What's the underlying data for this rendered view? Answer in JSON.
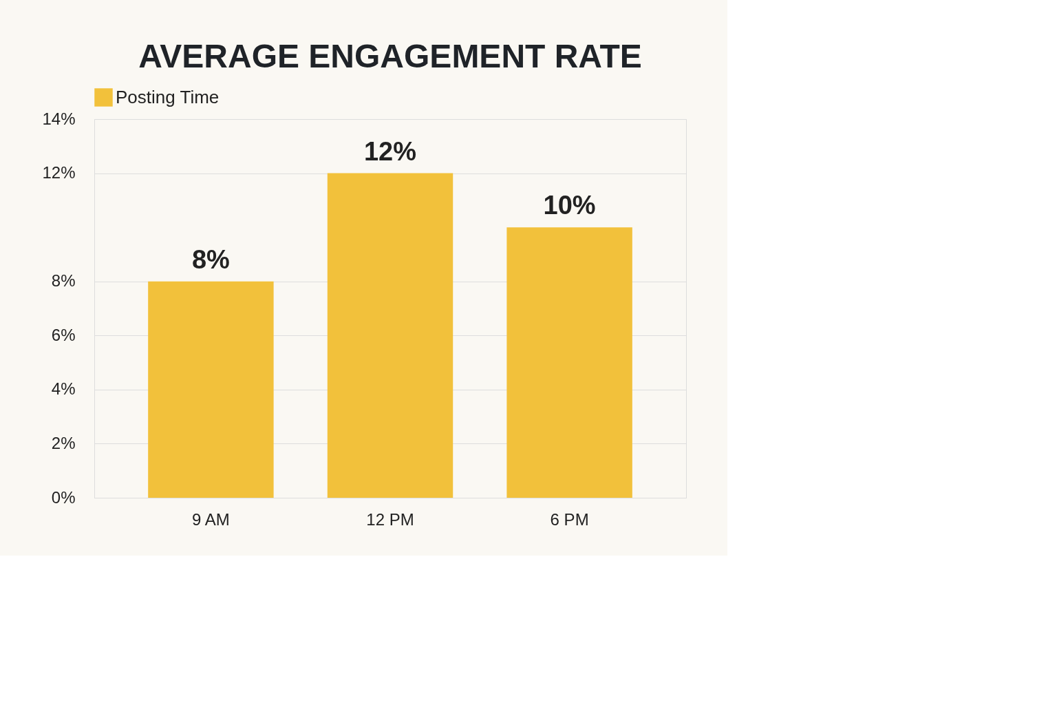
{
  "chart_data": {
    "type": "bar",
    "title": "AVERAGE ENGAGEMENT RATE",
    "categories": [
      "9 AM",
      "12 PM",
      "6 PM"
    ],
    "series": [
      {
        "name": "Posting Time",
        "color": "#f2c13b",
        "values": [
          8,
          12,
          10
        ],
        "value_labels": [
          "8%",
          "12%",
          "10%"
        ]
      }
    ],
    "ylim": [
      0,
      14
    ],
    "yticks": [
      {
        "value": 0,
        "label": "0%"
      },
      {
        "value": 2,
        "label": "2%"
      },
      {
        "value": 4,
        "label": "4%"
      },
      {
        "value": 6,
        "label": "6%"
      },
      {
        "value": 8,
        "label": "8%"
      },
      {
        "value": 12,
        "label": "12%"
      },
      {
        "value": 14,
        "label": "14%"
      }
    ],
    "grid": "y",
    "legend": "top"
  }
}
